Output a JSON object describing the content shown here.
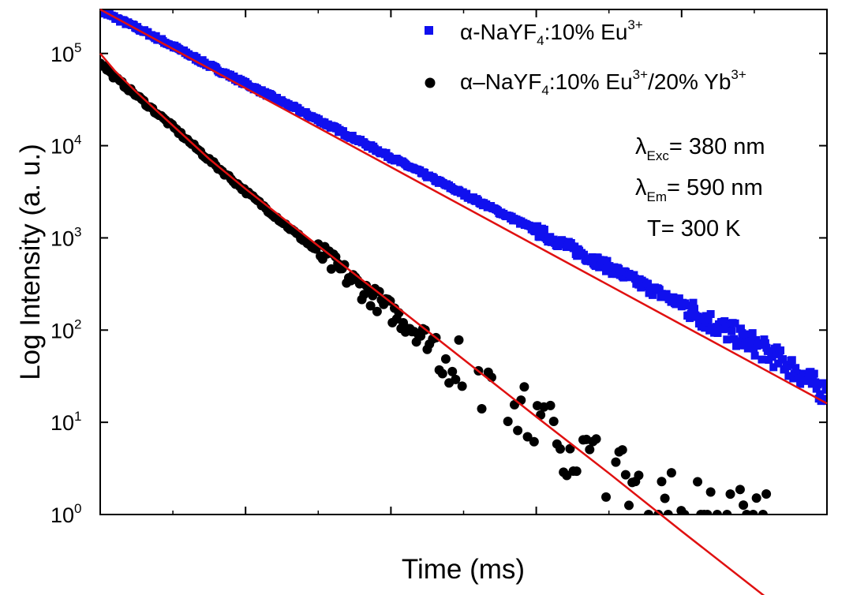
{
  "chart_data": {
    "type": "scatter",
    "xlabel": "Time (ms)",
    "ylabel": "Log Intensity (a. u.)",
    "xlim": [
      0,
      100
    ],
    "ylim": [
      1,
      300000
    ],
    "yscale": "log",
    "grid": false,
    "legend_position": "top-right",
    "x_ticks": [
      0,
      20,
      40,
      60,
      80,
      100
    ],
    "y_ticks": [
      {
        "value": 1,
        "base": "10",
        "exp": "0"
      },
      {
        "value": 10,
        "base": "10",
        "exp": "1"
      },
      {
        "value": 100,
        "base": "10",
        "exp": "2"
      },
      {
        "value": 1000,
        "base": "10",
        "exp": "3"
      },
      {
        "value": 10000,
        "base": "10",
        "exp": "4"
      },
      {
        "value": 100000,
        "base": "10",
        "exp": "5"
      }
    ],
    "series": [
      {
        "label_parts": [
          "α-NaYF",
          "4",
          ":10% Eu",
          "3+"
        ],
        "marker": "square",
        "color": "#1010ee",
        "x": [
          0,
          5,
          10,
          15,
          20,
          25,
          30,
          35,
          40,
          45,
          50,
          55,
          60,
          65,
          70,
          75,
          80,
          85,
          90,
          95,
          100
        ],
        "y": [
          290000,
          190000,
          120000,
          74000,
          47000,
          30000,
          19000,
          12000,
          7500,
          4700,
          3000,
          1900,
          1200,
          760,
          480,
          300,
          190,
          110,
          70,
          40,
          20
        ]
      },
      {
        "label_parts": [
          "α–NaYF",
          "4",
          ":10% Eu",
          "3+",
          "/20% Yb",
          "3+"
        ],
        "marker": "circle",
        "color": "#000000",
        "x": [
          0,
          2,
          5,
          10,
          15,
          20,
          25,
          30,
          35,
          40,
          45,
          50,
          55,
          60,
          65,
          70,
          75,
          80,
          85,
          90
        ],
        "y": [
          80000,
          55000,
          35000,
          16000,
          7000,
          3200,
          1500,
          700,
          330,
          160,
          80,
          40,
          20,
          10,
          5,
          3,
          2,
          1.5,
          1,
          1
        ]
      }
    ],
    "fits": [
      {
        "color": "#e01010",
        "x": [
          0,
          100
        ],
        "y": [
          300000,
          16
        ]
      },
      {
        "color": "#e01010",
        "x": [
          0,
          2,
          5,
          10,
          15,
          20,
          30,
          40,
          50,
          60,
          70,
          80,
          92
        ],
        "y": [
          100000,
          65000,
          38000,
          16500,
          7200,
          3400,
          820,
          200,
          48,
          11.5,
          2.8,
          0.66,
          0.12
        ]
      }
    ],
    "annotations": [
      {
        "symbol": "λ",
        "sub": "Exc",
        "text": "= 380 nm"
      },
      {
        "symbol": "λ",
        "sub": "Em",
        "text": "= 590 nm"
      },
      {
        "symbol": "",
        "sub": "",
        "text": "T= 300 K"
      }
    ]
  }
}
